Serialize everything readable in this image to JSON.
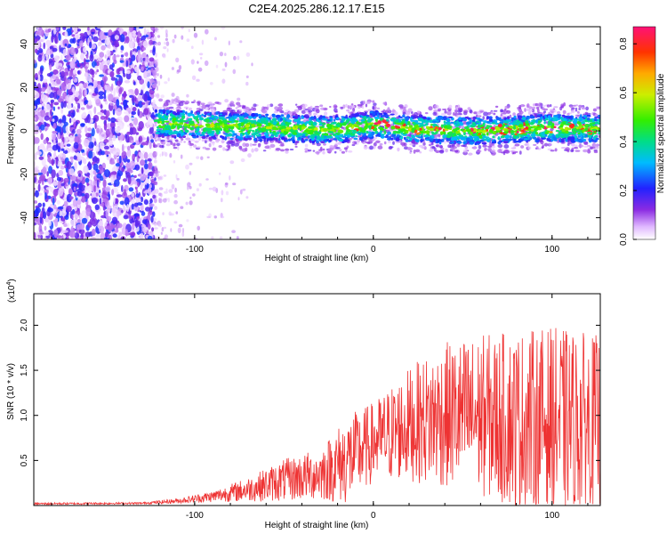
{
  "title": "C2E4.2025.286.12.17.E15",
  "colors": {
    "snr_line": "#ee3333",
    "axis": "#000000"
  },
  "chart_data": [
    {
      "type": "heatmap",
      "name": "spectrogram",
      "xlabel": "Height of straight line (km)",
      "ylabel": "Frequency (Hz)",
      "xlim": [
        -190,
        127
      ],
      "ylim": [
        -50,
        48
      ],
      "x_ticks": [
        -100,
        0,
        100
      ],
      "y_ticks": [
        -40,
        -20,
        0,
        20,
        40
      ],
      "colorbar": {
        "label": "Normalized spectral amplitude",
        "range": [
          0,
          0.87
        ],
        "ticks": [
          0.0,
          0.2,
          0.4,
          0.6,
          0.8
        ]
      },
      "noise_region_x": [
        -190,
        -122
      ],
      "signal_band_hz": [
        -4,
        8
      ],
      "signal_band_start_x": -122,
      "frequency_drift": [
        {
          "x": -120,
          "hz": 3.5
        },
        {
          "x": -60,
          "hz": 1.5
        },
        {
          "x": -20,
          "hz": 0.5
        },
        {
          "x": 0,
          "hz": 3.0
        },
        {
          "x": 20,
          "hz": 1.0
        },
        {
          "x": 60,
          "hz": 0.0
        },
        {
          "x": 100,
          "hz": 1.5
        },
        {
          "x": 127,
          "hz": 1.0
        }
      ]
    },
    {
      "type": "line",
      "name": "snr",
      "xlabel": "Height of straight line (km)",
      "ylabel": "SNR (10 * v/v)",
      "multiplier_label": "(x10",
      "multiplier_exp": "4",
      "multiplier_close": ")",
      "xlim": [
        -190,
        127
      ],
      "ylim": [
        0,
        23500
      ],
      "x_ticks": [
        -100,
        0,
        100
      ],
      "y_ticks": [
        0.5,
        1.0,
        1.5,
        2.0
      ],
      "envelope": [
        {
          "x": -190,
          "mean": 200,
          "amp": 120
        },
        {
          "x": -130,
          "mean": 250,
          "amp": 120
        },
        {
          "x": -110,
          "mean": 500,
          "amp": 300
        },
        {
          "x": -90,
          "mean": 1000,
          "amp": 700
        },
        {
          "x": -70,
          "mean": 1800,
          "amp": 1500
        },
        {
          "x": -50,
          "mean": 2800,
          "amp": 2600
        },
        {
          "x": -30,
          "mean": 3500,
          "amp": 3200
        },
        {
          "x": -15,
          "mean": 5000,
          "amp": 5500
        },
        {
          "x": 0,
          "mean": 7000,
          "amp": 5000
        },
        {
          "x": 20,
          "mean": 9000,
          "amp": 7000
        },
        {
          "x": 40,
          "mean": 10000,
          "amp": 9000
        },
        {
          "x": 60,
          "mean": 10000,
          "amp": 10000
        },
        {
          "x": 80,
          "mean": 9500,
          "amp": 11000
        },
        {
          "x": 100,
          "mean": 9500,
          "amp": 11500
        },
        {
          "x": 127,
          "mean": 9000,
          "amp": 11000
        }
      ]
    }
  ]
}
